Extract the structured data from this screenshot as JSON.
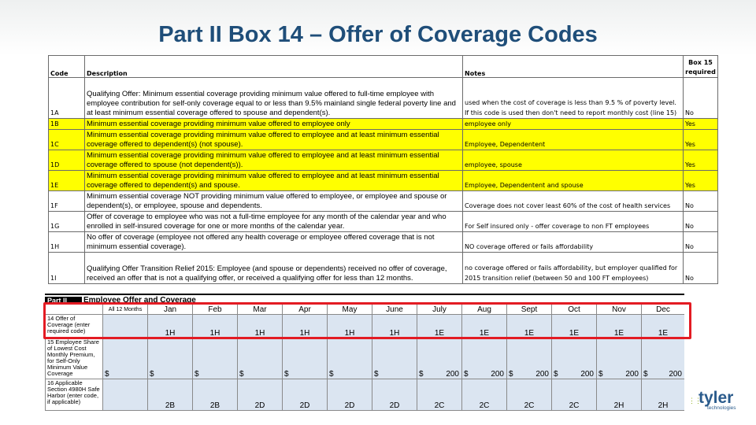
{
  "title": "Part II Box 14 – Offer of Coverage Codes",
  "codes_table": {
    "headers": {
      "code": "Code",
      "description": "Description",
      "notes": "Notes",
      "required_l1": "Box 15",
      "required_l2": "required"
    },
    "rows": [
      {
        "code": "1A",
        "description": "Qualifying Offer: Minimum essential coverage providing minimum value offered to full-time employee with employee contribution for self-only coverage equal to or less than 9.5% mainland single federal poverty line and at least minimum essential coverage offered to spouse and dependent(s).",
        "notes": "used when the cost of coverage is less than 9.5 % of poverty level.  If this code is used then don't need to report monthly cost (line 15)",
        "required": "No",
        "highlight": false
      },
      {
        "code": "1B",
        "description": "Minimum essential coverage providing minimum value offered to employee only",
        "notes": "employee only",
        "required": "Yes",
        "highlight": true
      },
      {
        "code": "1C",
        "description": "Minimum essential coverage providing minimum value offered to employee and at least minimum essential coverage offered to dependent(s) (not spouse).",
        "notes": "Employee, Dependentent",
        "required": "Yes",
        "highlight": true
      },
      {
        "code": "1D",
        "description": "Minimum essential coverage providing minimum value offered to employee and at least minimum essential coverage offered to spouse (not dependent(s)).",
        "notes": "employee, spouse",
        "required": "Yes",
        "highlight": true
      },
      {
        "code": "1E",
        "description": "Minimum essential coverage providing minimum value offered to employee and at least minimum essential coverage offered to dependent(s) and spouse.",
        "notes": "Employee, Dependentent and spouse",
        "required": "Yes",
        "highlight": true
      },
      {
        "code": "1F",
        "description": "Minimum essential coverage NOT providing minimum value offered to employee, or employee and spouse or dependent(s), or employee, spouse and dependents.",
        "notes": "Coverage does not cover least 60% of the cost of health services",
        "required": "No",
        "highlight": false
      },
      {
        "code": "1G",
        "description": "Offer of coverage to employee who was not a full-time employee for any month of the calendar year and who enrolled in self-insured coverage for one or more months of the calendar year.",
        "notes": "For Self insured only - offer coverage to non FT employees",
        "required": "No",
        "highlight": false
      },
      {
        "code": "1H",
        "description": "No offer of coverage (employee not offered any health coverage or employee offered coverage that is not minimum essential coverage).",
        "notes": "NO coverage offered or fails affordability",
        "required": "No",
        "highlight": false
      },
      {
        "code": "1I",
        "description": "Qualifying Offer Transition Relief 2015: Employee (and spouse or dependents) received no offer of coverage, received an offer that is not a qualifying offer, or received a qualifying offer for less than 12 months.",
        "notes": "no coverage offered or fails affordability, but employer qualified for 2015 transition relief (between 50 and 100 FT employees)",
        "required": "No",
        "highlight": false
      }
    ]
  },
  "form": {
    "part_label": "Part II",
    "part_title": "Employee Offer and Coverage",
    "months": [
      "All 12 Months",
      "Jan",
      "Feb",
      "Mar",
      "Apr",
      "May",
      "June",
      "July",
      "Aug",
      "Sept",
      "Oct",
      "Nov",
      "Dec"
    ],
    "line14": {
      "label": "14  Offer of Coverage (enter required code)",
      "values": [
        "",
        "1H",
        "1H",
        "1H",
        "1H",
        "1H",
        "1H",
        "1E",
        "1E",
        "1E",
        "1E",
        "1E",
        "1E"
      ]
    },
    "line15": {
      "label": "15  Employee Share of Lowest Cost Monthly Premium, for Self-Only Minimum Value Coverage",
      "currency": "$",
      "values": [
        "",
        "",
        "",
        "",
        "",
        "",
        "",
        "200",
        "200",
        "200",
        "200",
        "200",
        "200"
      ]
    },
    "line16": {
      "label": "16  Applicable Section 4980H Safe Harbor (enter code, if applicable)",
      "values": [
        "",
        "2B",
        "2B",
        "2D",
        "2D",
        "2D",
        "2D",
        "2C",
        "2C",
        "2C",
        "2C",
        "2H",
        "2H"
      ]
    }
  },
  "logo": {
    "name": "tyler",
    "subtitle": "technologies"
  },
  "colors": {
    "title": "#1f4e79",
    "highlight": "#ffff00",
    "callout": "#e31b23",
    "field": "#dbe5f1"
  }
}
